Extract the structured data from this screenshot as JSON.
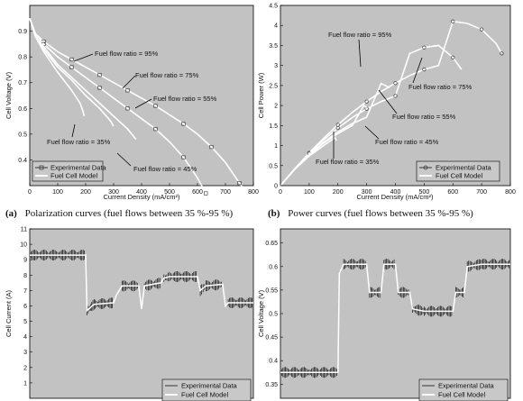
{
  "colors": {
    "plot_bg": "#c2c2c2",
    "model": "#ffffff",
    "experimental": "#333333",
    "axis": "#000000"
  },
  "legend": {
    "experimental": "Experimental Data",
    "model": "Fuel Cell Model"
  },
  "captions": {
    "a": {
      "label": "(a)",
      "text": "Polarization curves (fuel flows between 35 %-95 %)"
    },
    "b": {
      "label": "(b)",
      "text": "Power curves (fuel flows between 35 %-95 %)"
    }
  },
  "chart_data": [
    {
      "id": "a",
      "type": "line",
      "xlabel": "Current Density (mA/cm²)",
      "ylabel": "Cell Voltage (V)",
      "xlim": [
        0,
        800
      ],
      "ylim": [
        0.3,
        1.0
      ],
      "xticks": [
        "0",
        "100",
        "200",
        "300",
        "400",
        "500",
        "600",
        "700",
        "800"
      ],
      "yticks": [
        "0.4",
        "0.5",
        "0.6",
        "0.7",
        "0.8",
        "0.9"
      ],
      "legend_position": "bottom-left",
      "annotations": [
        "Fuel flow ratio = 95%",
        "Fuel flow ratio = 75%",
        "Fuel flow ratio = 55%",
        "Fuel flow ratio = 35%",
        "Fuel flow ratio = 45%"
      ],
      "series": [
        {
          "flow": "95%",
          "x": [
            0,
            20,
            50,
            100,
            150,
            200,
            250,
            300,
            350,
            400,
            450,
            500,
            550,
            600,
            650,
            700,
            750,
            770
          ],
          "y": [
            0.95,
            0.89,
            0.86,
            0.82,
            0.79,
            0.76,
            0.73,
            0.7,
            0.67,
            0.64,
            0.61,
            0.575,
            0.54,
            0.5,
            0.45,
            0.39,
            0.31,
            0.28
          ]
        },
        {
          "flow": "75%",
          "x": [
            0,
            20,
            50,
            100,
            150,
            200,
            250,
            300,
            350,
            400,
            450,
            500,
            550,
            600,
            630
          ],
          "y": [
            0.95,
            0.89,
            0.85,
            0.8,
            0.76,
            0.72,
            0.68,
            0.64,
            0.6,
            0.56,
            0.52,
            0.47,
            0.41,
            0.33,
            0.27
          ]
        },
        {
          "flow": "55%",
          "x": [
            0,
            20,
            50,
            100,
            150,
            200,
            250,
            300,
            350,
            380
          ],
          "y": [
            0.95,
            0.88,
            0.84,
            0.77,
            0.72,
            0.67,
            0.62,
            0.57,
            0.52,
            0.48
          ]
        },
        {
          "flow": "45%",
          "x": [
            0,
            20,
            50,
            100,
            150,
            200,
            250,
            290,
            300
          ],
          "y": [
            0.95,
            0.88,
            0.83,
            0.76,
            0.71,
            0.65,
            0.6,
            0.55,
            0.53
          ]
        },
        {
          "flow": "35%",
          "x": [
            0,
            20,
            50,
            100,
            150,
            180,
            190,
            195
          ],
          "y": [
            0.95,
            0.88,
            0.82,
            0.74,
            0.67,
            0.62,
            0.59,
            0.57
          ]
        }
      ]
    },
    {
      "id": "b",
      "type": "line",
      "xlabel": "Current Density (mA/cm²)",
      "ylabel": "Cell Power (W)",
      "xlim": [
        0,
        800
      ],
      "ylim": [
        0,
        4.5
      ],
      "xticks": [
        "0",
        "100",
        "200",
        "300",
        "400",
        "500",
        "600",
        "700",
        "800"
      ],
      "yticks": [
        "0",
        "0.5",
        "1",
        "1.5",
        "2",
        "2.5",
        "3",
        "3.5",
        "4",
        "4.5"
      ],
      "legend_position": "bottom-right",
      "annotations": [
        "Fuel flow ratio = 95%",
        "Fuel flow ratio = 75%",
        "Fuel flow ratio = 55%",
        "Fuel flow ratio = 45%",
        "Fuel flow ratio = 35%"
      ],
      "series": [
        {
          "flow": "95%",
          "x": [
            0,
            50,
            100,
            150,
            200,
            250,
            300,
            350,
            400,
            450,
            500,
            550,
            600,
            650,
            700,
            750,
            770
          ],
          "y": [
            0,
            0.42,
            0.82,
            1.18,
            1.52,
            1.83,
            2.1,
            2.35,
            2.56,
            2.75,
            2.9,
            3.0,
            4.1,
            4.05,
            3.9,
            3.55,
            3.3
          ]
        },
        {
          "flow": "75%",
          "x": [
            0,
            50,
            100,
            150,
            200,
            250,
            300,
            350,
            400,
            450,
            500,
            550,
            600,
            630
          ],
          "y": [
            0,
            0.42,
            0.8,
            1.14,
            1.44,
            1.7,
            1.92,
            2.1,
            2.24,
            3.3,
            3.45,
            3.5,
            3.2,
            2.9
          ]
        },
        {
          "flow": "55%",
          "x": [
            0,
            50,
            100,
            150,
            200,
            250,
            300,
            350,
            380
          ],
          "y": [
            0,
            0.42,
            0.77,
            1.08,
            1.34,
            1.55,
            1.71,
            2.55,
            2.45
          ]
        },
        {
          "flow": "45%",
          "x": [
            0,
            50,
            100,
            150,
            200,
            250,
            290,
            300
          ],
          "y": [
            0,
            0.41,
            0.76,
            1.06,
            1.3,
            1.5,
            2.0,
            1.95
          ]
        },
        {
          "flow": "35%",
          "x": [
            0,
            50,
            100,
            150,
            180,
            190,
            195
          ],
          "y": [
            0,
            0.41,
            0.74,
            1.0,
            1.15,
            1.2,
            1.12
          ]
        }
      ]
    },
    {
      "id": "c",
      "type": "line",
      "xlabel": "",
      "ylabel": "Cell Current (A)",
      "ylim": [
        0,
        11
      ],
      "yticks": [
        "1",
        "2",
        "3",
        "4",
        "5",
        "6",
        "7",
        "8",
        "9",
        "10",
        "11"
      ],
      "legend_position": "bottom-right",
      "series": [
        {
          "name": "model",
          "x": [
            0,
            1,
            2,
            2.05,
            2.3,
            3,
            3.1,
            3.3,
            3.9,
            4,
            4.1,
            4.7,
            4.8,
            5,
            6,
            6.1,
            6.3,
            6.9,
            7,
            7.1,
            8
          ],
          "y": [
            9.3,
            9.3,
            9.3,
            5.7,
            6.1,
            6.2,
            6.7,
            7.3,
            7.3,
            5.8,
            7.3,
            7.5,
            7.8,
            7.9,
            7.9,
            7.0,
            7.3,
            7.4,
            6.0,
            6.2,
            6.2
          ]
        }
      ]
    },
    {
      "id": "d",
      "type": "line",
      "xlabel": "",
      "ylabel": "Cell Voltage (V)",
      "ylim": [
        0.32,
        0.68
      ],
      "yticks": [
        "0.35",
        "0.4",
        "0.45",
        "0.5",
        "0.55",
        "0.6",
        "0.65"
      ],
      "legend_position": "bottom-right",
      "series": [
        {
          "name": "model",
          "x": [
            0,
            1,
            2,
            2.05,
            2.2,
            3,
            3.1,
            3.5,
            3.6,
            4,
            4.1,
            4.5,
            4.6,
            5,
            6,
            6.1,
            6.4,
            6.5,
            7,
            8
          ],
          "y": [
            0.375,
            0.375,
            0.375,
            0.585,
            0.605,
            0.605,
            0.545,
            0.545,
            0.605,
            0.605,
            0.545,
            0.545,
            0.51,
            0.505,
            0.505,
            0.545,
            0.545,
            0.6,
            0.605,
            0.605
          ]
        }
      ]
    }
  ]
}
